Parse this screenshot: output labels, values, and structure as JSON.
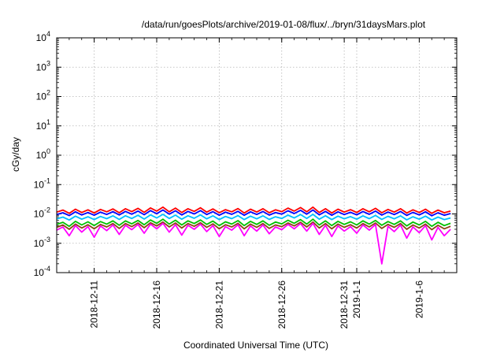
{
  "chart_data": {
    "type": "line",
    "title": "/data/run/goesPlots/archive/2019-01-08/flux/../bryn/31daysMars.plot",
    "xlabel": "Coordinated Universal Time (UTC)",
    "ylabel": "cGy/day",
    "y_scale": "log",
    "ylim": [
      0.0001,
      10000
    ],
    "y_ticks": [
      {
        "value": 0.0001,
        "base": "10",
        "exp": "-4"
      },
      {
        "value": 0.001,
        "base": "10",
        "exp": "-3"
      },
      {
        "value": 0.01,
        "base": "10",
        "exp": "-2"
      },
      {
        "value": 0.1,
        "base": "10",
        "exp": "-1"
      },
      {
        "value": 1,
        "base": "10",
        "exp": "0"
      },
      {
        "value": 10,
        "base": "10",
        "exp": "1"
      },
      {
        "value": 100,
        "base": "10",
        "exp": "2"
      },
      {
        "value": 1000,
        "base": "10",
        "exp": "3"
      },
      {
        "value": 10000,
        "base": "10",
        "exp": "4"
      }
    ],
    "xlim": [
      "2018-12-08",
      "2019-01-09"
    ],
    "x_ticks": [
      {
        "value": "2018-12-11",
        "label": "2018-12-11"
      },
      {
        "value": "2018-12-16",
        "label": "2018-12-16"
      },
      {
        "value": "2018-12-21",
        "label": "2018-12-21"
      },
      {
        "value": "2018-12-26",
        "label": "2018-12-26"
      },
      {
        "value": "2018-12-31",
        "label": "2018-12-31"
      },
      {
        "value": "2019-01-01",
        "label": "2019-1-1"
      },
      {
        "value": "2019-01-06",
        "label": "2019-1-6"
      }
    ],
    "grid": true,
    "legend": "none",
    "series_sample_interval_hours": 12,
    "series": [
      {
        "color": "#ff0000",
        "values": [
          0.0115,
          0.0135,
          0.0105,
          0.0145,
          0.0112,
          0.0138,
          0.0108,
          0.0142,
          0.0118,
          0.0148,
          0.011,
          0.015,
          0.012,
          0.0155,
          0.0113,
          0.016,
          0.0125,
          0.017,
          0.0118,
          0.0158,
          0.0112,
          0.015,
          0.0122,
          0.0162,
          0.0115,
          0.0148,
          0.011,
          0.014,
          0.0118,
          0.0152,
          0.0108,
          0.0145,
          0.0116,
          0.015,
          0.011,
          0.0138,
          0.012,
          0.0158,
          0.0125,
          0.0165,
          0.0118,
          0.017,
          0.0112,
          0.015,
          0.0108,
          0.0145,
          0.0115,
          0.014,
          0.0112,
          0.015,
          0.0118,
          0.0155,
          0.011,
          0.0142,
          0.0115,
          0.015,
          0.0108,
          0.0138,
          0.0112,
          0.0145,
          0.0105,
          0.0135,
          0.011,
          0.0125
        ]
      },
      {
        "color": "#0000ff",
        "values": [
          0.0095,
          0.011,
          0.0088,
          0.0118,
          0.0092,
          0.0112,
          0.009,
          0.0115,
          0.0096,
          0.012,
          0.0092,
          0.0122,
          0.0098,
          0.0125,
          0.0094,
          0.013,
          0.0102,
          0.0136,
          0.0098,
          0.0128,
          0.0092,
          0.0122,
          0.01,
          0.013,
          0.0095,
          0.012,
          0.009,
          0.0115,
          0.0097,
          0.0123,
          0.009,
          0.0118,
          0.0096,
          0.0121,
          0.0091,
          0.0112,
          0.0099,
          0.0128,
          0.0103,
          0.0133,
          0.0098,
          0.0136,
          0.0093,
          0.0122,
          0.009,
          0.0118,
          0.0095,
          0.0114,
          0.0093,
          0.0121,
          0.0097,
          0.0125,
          0.0091,
          0.0116,
          0.0095,
          0.0121,
          0.0089,
          0.0113,
          0.0092,
          0.0118,
          0.0087,
          0.011,
          0.009,
          0.0103
        ]
      },
      {
        "color": "#00bfff",
        "values": [
          0.0068,
          0.0078,
          0.0062,
          0.0084,
          0.0066,
          0.008,
          0.0064,
          0.0082,
          0.0069,
          0.0086,
          0.0065,
          0.0087,
          0.007,
          0.009,
          0.0067,
          0.0093,
          0.0073,
          0.0097,
          0.007,
          0.0091,
          0.0066,
          0.0087,
          0.0071,
          0.0093,
          0.0068,
          0.0086,
          0.0064,
          0.0082,
          0.0069,
          0.0088,
          0.0064,
          0.0084,
          0.0068,
          0.0086,
          0.0065,
          0.008,
          0.007,
          0.0091,
          0.0073,
          0.0095,
          0.007,
          0.0097,
          0.0066,
          0.0087,
          0.0064,
          0.0084,
          0.0068,
          0.0081,
          0.0066,
          0.0086,
          0.0069,
          0.0089,
          0.0065,
          0.0083,
          0.0068,
          0.0086,
          0.0063,
          0.008,
          0.0066,
          0.0084,
          0.0062,
          0.0078,
          0.0064,
          0.0073
        ]
      },
      {
        "color": "#00c000",
        "values": [
          0.0044,
          0.0052,
          0.0038,
          0.0056,
          0.0042,
          0.0054,
          0.004,
          0.0055,
          0.0045,
          0.0058,
          0.0041,
          0.0058,
          0.0046,
          0.006,
          0.0043,
          0.0062,
          0.0048,
          0.0066,
          0.0045,
          0.0061,
          0.0042,
          0.0058,
          0.0047,
          0.0062,
          0.0044,
          0.0057,
          0.004,
          0.0054,
          0.0045,
          0.0059,
          0.004,
          0.0056,
          0.0044,
          0.0058,
          0.0041,
          0.0053,
          0.0046,
          0.0061,
          0.0048,
          0.0064,
          0.0045,
          0.0066,
          0.0042,
          0.0058,
          0.004,
          0.0056,
          0.0044,
          0.0054,
          0.0042,
          0.0058,
          0.0045,
          0.006,
          0.0041,
          0.0055,
          0.0044,
          0.0058,
          0.0039,
          0.0053,
          0.0042,
          0.0056,
          0.0038,
          0.0052,
          0.004,
          0.0048
        ]
      },
      {
        "color": "#8b4513",
        "values": [
          0.0035,
          0.0042,
          0.003,
          0.0045,
          0.0033,
          0.0043,
          0.0031,
          0.0044,
          0.0036,
          0.0047,
          0.0032,
          0.0047,
          0.0037,
          0.0049,
          0.0034,
          0.005,
          0.0039,
          0.0053,
          0.0036,
          0.0049,
          0.0033,
          0.0047,
          0.0038,
          0.005,
          0.0035,
          0.0046,
          0.0031,
          0.0043,
          0.0036,
          0.0048,
          0.0031,
          0.0045,
          0.0035,
          0.0047,
          0.0032,
          0.0042,
          0.0037,
          0.0049,
          0.0039,
          0.0052,
          0.0036,
          0.0053,
          0.0033,
          0.0047,
          0.0031,
          0.0045,
          0.0035,
          0.0043,
          0.0033,
          0.0047,
          0.0036,
          0.0049,
          0.0032,
          0.0044,
          0.0035,
          0.0047,
          0.003,
          0.0042,
          0.0033,
          0.0045,
          0.0029,
          0.0041,
          0.0031,
          0.0038
        ]
      },
      {
        "color": "#ff00ff",
        "values": [
          0.0028,
          0.0036,
          0.0018,
          0.004,
          0.0024,
          0.0037,
          0.0016,
          0.0039,
          0.0027,
          0.0042,
          0.002,
          0.0041,
          0.0029,
          0.0044,
          0.0022,
          0.0045,
          0.0031,
          0.0048,
          0.0024,
          0.0043,
          0.0019,
          0.0041,
          0.003,
          0.0045,
          0.0025,
          0.004,
          0.0017,
          0.0037,
          0.0028,
          0.0043,
          0.0018,
          0.0039,
          0.0026,
          0.0042,
          0.0021,
          0.0036,
          0.0029,
          0.0044,
          0.0031,
          0.0047,
          0.0026,
          0.0048,
          0.002,
          0.0041,
          0.0017,
          0.0039,
          0.0026,
          0.0037,
          0.0022,
          0.0042,
          0.0028,
          0.0044,
          0.0002,
          0.0038,
          0.0025,
          0.0042,
          0.0015,
          0.0036,
          0.0023,
          0.004,
          0.0013,
          0.0035,
          0.0018,
          0.003
        ]
      }
    ]
  }
}
